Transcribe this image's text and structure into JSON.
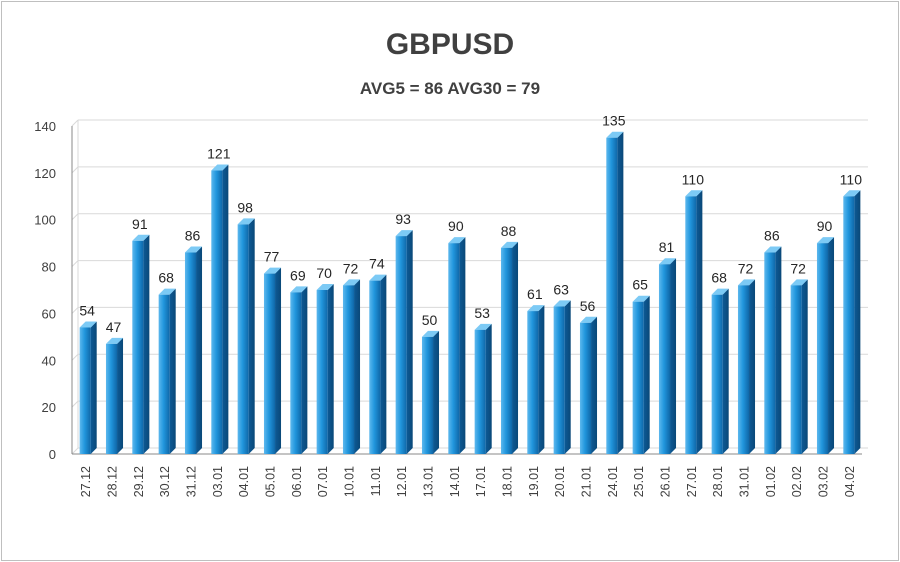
{
  "chart_data": {
    "type": "bar",
    "title": "GBPUSD",
    "subtitle": "AVG5 = 86 AVG30 = 79",
    "xlabel": "",
    "ylabel": "",
    "ylim": [
      0,
      140
    ],
    "yticks": [
      0,
      20,
      40,
      60,
      80,
      100,
      120,
      140
    ],
    "grid": true,
    "categories": [
      "27.12",
      "28.12",
      "29.12",
      "30.12",
      "31.12",
      "03.01",
      "04.01",
      "05.01",
      "06.01",
      "07.01",
      "10.01",
      "11.01",
      "12.01",
      "13.01",
      "14.01",
      "17.01",
      "18.01",
      "19.01",
      "20.01",
      "21.01",
      "24.01",
      "25.01",
      "26.01",
      "27.01",
      "28.01",
      "31.01",
      "01.02",
      "02.02",
      "03.02",
      "04.02"
    ],
    "values": [
      54,
      47,
      91,
      68,
      86,
      121,
      98,
      77,
      69,
      70,
      72,
      74,
      93,
      50,
      90,
      53,
      88,
      61,
      63,
      56,
      135,
      65,
      81,
      110,
      68,
      72,
      86,
      72,
      90,
      110
    ],
    "colors": {
      "bar": "#1f8fd6",
      "bar_light": "#6cc0f2",
      "bar_dark": "#0e5e9c",
      "grid": "#d9d9d9",
      "axis": "#888888"
    }
  }
}
